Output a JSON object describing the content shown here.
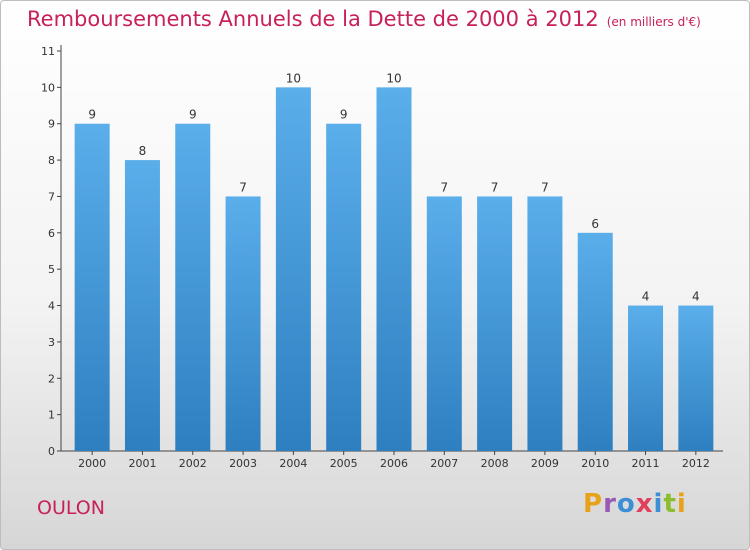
{
  "title": "Remboursements Annuels de la Dette de 2000 à 2012",
  "unit_note": "(en milliers d'€)",
  "place_name": "OULON",
  "logo": {
    "letters": [
      "P",
      "r",
      "o",
      "x",
      "i",
      "t",
      "i"
    ],
    "colors": [
      "#e8a21a",
      "#9b59b6",
      "#3c8fd4",
      "#e23f5c",
      "#3c8fd4",
      "#8bbd2e",
      "#e8a21a"
    ]
  },
  "chart_data": {
    "type": "bar",
    "title": "Remboursements Annuels de la Dette de 2000 à 2012",
    "subtitle": "(en milliers d'€)",
    "xlabel": "",
    "ylabel": "",
    "categories": [
      "2000",
      "2001",
      "2002",
      "2003",
      "2004",
      "2005",
      "2006",
      "2007",
      "2008",
      "2009",
      "2010",
      "2011",
      "2012"
    ],
    "values": [
      9,
      8,
      9,
      7,
      10,
      9,
      10,
      7,
      7,
      7,
      6,
      4,
      4
    ],
    "ylim": [
      0,
      11
    ],
    "yticks": [
      0,
      1,
      2,
      3,
      4,
      5,
      6,
      7,
      8,
      9,
      10,
      11
    ],
    "grid": false,
    "bar_color": "#4a9de0",
    "text_color": "#333333",
    "accent_color": "#c8205a"
  }
}
